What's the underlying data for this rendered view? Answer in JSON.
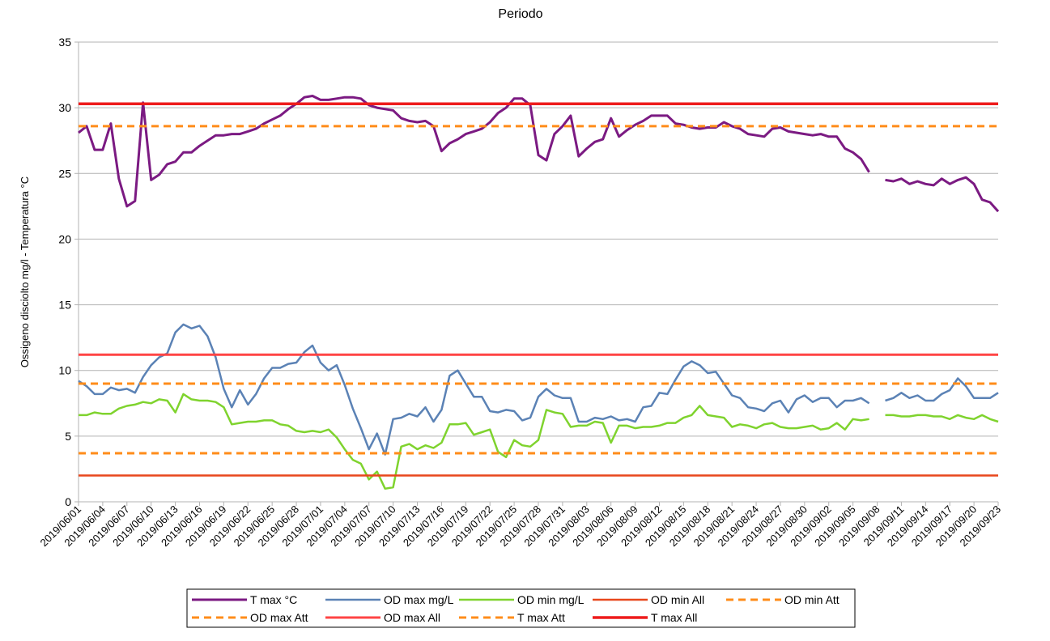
{
  "chart_data": {
    "type": "line",
    "title": "Periodo",
    "y_label": "Ossigeno disciolto mg/l - Temperatura °C",
    "ylim": [
      0,
      35
    ],
    "yticks": [
      0,
      5,
      10,
      15,
      20,
      25,
      30,
      35
    ],
    "grid": true,
    "legend": "bottom",
    "categories": [
      "2019/06/01",
      null,
      null,
      "2019/06/04",
      null,
      null,
      "2019/06/07",
      null,
      null,
      "2019/06/10",
      null,
      null,
      "2019/06/13",
      null,
      null,
      "2019/06/16",
      null,
      null,
      "2019/06/19",
      null,
      null,
      "2019/06/22",
      null,
      null,
      "2019/06/25",
      null,
      null,
      "2019/06/28",
      null,
      null,
      "2019/07/01",
      null,
      null,
      "2019/07/04",
      null,
      null,
      "2019/07/07",
      null,
      null,
      "2019/07/10",
      null,
      null,
      "2019/07/13",
      null,
      null,
      "2019/07/16",
      null,
      null,
      "2019/07/19",
      null,
      null,
      "2019/07/22",
      null,
      null,
      "2019/07/25",
      null,
      null,
      "2019/07/28",
      null,
      null,
      "2019/07/31",
      null,
      null,
      "2019/08/03",
      null,
      null,
      "2019/08/06",
      null,
      null,
      "2019/08/09",
      null,
      null,
      "2019/08/12",
      null,
      null,
      "2019/08/15",
      null,
      null,
      "2019/08/18",
      null,
      null,
      "2019/08/21",
      null,
      null,
      "2019/08/24",
      null,
      null,
      "2019/08/27",
      null,
      null,
      "2019/08/30",
      null,
      null,
      "2019/09/02",
      null,
      null,
      "2019/09/05",
      null,
      null,
      "2019/09/08",
      null,
      null,
      "2019/09/11",
      null,
      null,
      "2019/09/14",
      null,
      null,
      "2019/09/17",
      null,
      null,
      "2019/09/20",
      null,
      null,
      "2019/09/23"
    ],
    "series": [
      {
        "name": "T max °C",
        "color": "#7b1a82",
        "width": 3,
        "values": [
          28.1,
          28.6,
          26.8,
          26.8,
          28.8,
          24.6,
          22.5,
          22.9,
          30.4,
          24.5,
          24.9,
          25.7,
          25.9,
          26.6,
          26.6,
          27.1,
          27.5,
          27.9,
          27.9,
          28.0,
          28.0,
          28.2,
          28.4,
          28.8,
          29.1,
          29.4,
          29.9,
          30.3,
          30.8,
          30.9,
          30.6,
          30.6,
          30.7,
          30.8,
          30.8,
          30.7,
          30.2,
          30.0,
          29.9,
          29.8,
          29.2,
          29.0,
          28.9,
          29.0,
          28.6,
          26.7,
          27.3,
          27.6,
          28.0,
          28.2,
          28.4,
          28.9,
          29.6,
          30.0,
          30.7,
          30.7,
          30.2,
          26.4,
          26.0,
          28.0,
          28.6,
          29.4,
          26.3,
          26.9,
          27.4,
          27.6,
          29.2,
          27.8,
          28.3,
          28.7,
          29.0,
          29.4,
          29.4,
          29.4,
          28.8,
          28.7,
          28.5,
          28.4,
          28.5,
          28.5,
          28.9,
          28.6,
          28.4,
          28.0,
          27.9,
          27.8,
          28.4,
          28.5,
          28.2,
          28.1,
          28.0,
          27.9,
          28.0,
          27.8,
          27.8,
          26.9,
          26.6,
          26.1,
          25.1,
          null,
          24.5,
          24.4,
          24.6,
          24.2,
          24.4,
          24.2,
          24.1,
          24.6,
          24.2,
          24.5,
          24.7,
          24.2,
          23.0,
          22.8,
          22.1
        ]
      },
      {
        "name": "OD max mg/L",
        "color": "#5b82b5",
        "width": 2.5,
        "values": [
          9.2,
          8.8,
          8.2,
          8.2,
          8.7,
          8.5,
          8.6,
          8.3,
          9.5,
          10.4,
          11.0,
          11.3,
          12.9,
          13.5,
          13.2,
          13.4,
          12.6,
          11.0,
          8.6,
          7.2,
          8.5,
          7.4,
          8.2,
          9.4,
          10.2,
          10.2,
          10.5,
          10.6,
          11.4,
          11.9,
          10.6,
          10.0,
          10.4,
          8.9,
          7.1,
          5.6,
          4.0,
          5.2,
          3.6,
          6.3,
          6.4,
          6.7,
          6.5,
          7.2,
          6.1,
          7.0,
          9.6,
          10.0,
          9.0,
          8.0,
          8.0,
          6.9,
          6.8,
          7.0,
          6.9,
          6.2,
          6.4,
          8.0,
          8.6,
          8.1,
          7.9,
          7.9,
          6.1,
          6.1,
          6.4,
          6.3,
          6.5,
          6.2,
          6.3,
          6.1,
          7.2,
          7.3,
          8.3,
          8.2,
          9.3,
          10.3,
          10.7,
          10.4,
          9.8,
          9.9,
          9.0,
          8.1,
          7.9,
          7.2,
          7.1,
          6.9,
          7.5,
          7.7,
          6.8,
          7.8,
          8.1,
          7.6,
          7.9,
          7.9,
          7.2,
          7.7,
          7.7,
          7.9,
          7.5,
          null,
          7.7,
          7.9,
          8.3,
          7.9,
          8.1,
          7.7,
          7.7,
          8.2,
          8.5,
          9.4,
          8.8,
          7.9,
          7.9,
          7.9,
          8.3
        ]
      },
      {
        "name": "OD min mg/L",
        "color": "#7fd32e",
        "width": 2.5,
        "values": [
          6.6,
          6.6,
          6.8,
          6.7,
          6.7,
          7.1,
          7.3,
          7.4,
          7.6,
          7.5,
          7.8,
          7.7,
          6.8,
          8.2,
          7.8,
          7.7,
          7.7,
          7.6,
          7.2,
          5.9,
          6.0,
          6.1,
          6.1,
          6.2,
          6.2,
          5.9,
          5.8,
          5.4,
          5.3,
          5.4,
          5.3,
          5.5,
          4.9,
          4.0,
          3.2,
          2.9,
          1.7,
          2.3,
          1.0,
          1.1,
          4.2,
          4.4,
          4.0,
          4.3,
          4.1,
          4.5,
          5.9,
          5.9,
          6.0,
          5.1,
          5.3,
          5.5,
          3.8,
          3.4,
          4.7,
          4.3,
          4.2,
          4.7,
          7.0,
          6.8,
          6.7,
          5.7,
          5.8,
          5.8,
          6.1,
          6.0,
          4.5,
          5.8,
          5.8,
          5.6,
          5.7,
          5.7,
          5.8,
          6.0,
          6.0,
          6.4,
          6.6,
          7.3,
          6.6,
          6.5,
          6.4,
          5.7,
          5.9,
          5.8,
          5.6,
          5.9,
          6.0,
          5.7,
          5.6,
          5.6,
          5.7,
          5.8,
          5.5,
          5.6,
          6.0,
          5.5,
          6.3,
          6.2,
          6.3,
          null,
          6.6,
          6.6,
          6.5,
          6.5,
          6.6,
          6.6,
          6.5,
          6.5,
          6.3,
          6.6,
          6.4,
          6.3,
          6.6,
          6.3,
          6.1
        ]
      },
      {
        "name": "OD min All",
        "color": "#e8471c",
        "width": 2.5,
        "value": 2.0,
        "dashed": false
      },
      {
        "name": "OD min Att",
        "color": "#ff8c1a",
        "width": 3,
        "value": 3.7,
        "dashed": true
      },
      {
        "name": "OD max Att",
        "color": "#ff8c1a",
        "width": 3,
        "value": 9.0,
        "dashed": true
      },
      {
        "name": "OD max All",
        "color": "#ff4545",
        "width": 3,
        "value": 11.2,
        "dashed": false
      },
      {
        "name": "T max Att",
        "color": "#ff8c1a",
        "width": 3,
        "value": 28.6,
        "dashed": true
      },
      {
        "name": "T max All",
        "color": "#ee1c1c",
        "width": 3.5,
        "value": 30.3,
        "dashed": false
      }
    ]
  }
}
